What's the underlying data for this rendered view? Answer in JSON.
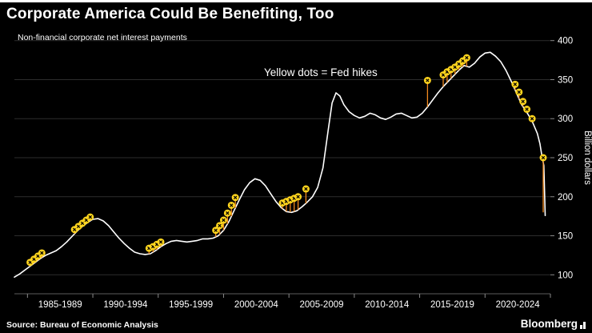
{
  "header": {
    "title": "Corporate America Could Be Benefiting, Too"
  },
  "chart": {
    "subtitle": "Non-financial corporate net interest payments",
    "annotation": "Yellow dots = Fed hikes",
    "y_axis_label": "Billion dollars"
  },
  "footer": {
    "source": "Source: Bureau of Economic Analysis",
    "brand": "Bloomberg"
  },
  "chart_data": {
    "type": "line",
    "title": "Corporate America Could Be Benefiting, Too",
    "subtitle": "Non-financial corporate net interest payments",
    "annotation": "Yellow dots = Fed hikes",
    "xlabel": "",
    "ylabel": "Billion dollars",
    "x_unit": "year",
    "x_range_years": [
      1984,
      2025
    ],
    "ylim": [
      88,
      412
    ],
    "yticks": [
      100,
      150,
      200,
      250,
      300,
      350,
      400
    ],
    "x_tick_labels": [
      "1985-1989",
      "1990-1994",
      "1995-1999",
      "2000-2004",
      "2005-2009",
      "2010-2014",
      "2015-2019",
      "2020-2024"
    ],
    "grid": "horizontal",
    "legend": "none",
    "series": [
      {
        "name": "Non-financial corporate net interest payments",
        "color": "#ffffff",
        "points": [
          [
            1984.0,
            97
          ],
          [
            1984.4,
            101
          ],
          [
            1984.8,
            106
          ],
          [
            1985.2,
            111
          ],
          [
            1985.6,
            116
          ],
          [
            1986.0,
            121
          ],
          [
            1986.4,
            125
          ],
          [
            1986.8,
            128
          ],
          [
            1987.2,
            131
          ],
          [
            1987.6,
            136
          ],
          [
            1988.0,
            142
          ],
          [
            1988.4,
            149
          ],
          [
            1988.8,
            156
          ],
          [
            1989.2,
            162
          ],
          [
            1989.6,
            167
          ],
          [
            1990.0,
            171
          ],
          [
            1990.4,
            172
          ],
          [
            1990.8,
            169
          ],
          [
            1991.2,
            163
          ],
          [
            1991.6,
            155
          ],
          [
            1992.0,
            147
          ],
          [
            1992.4,
            140
          ],
          [
            1992.8,
            134
          ],
          [
            1993.2,
            129
          ],
          [
            1993.6,
            127
          ],
          [
            1994.0,
            126
          ],
          [
            1994.4,
            127
          ],
          [
            1994.8,
            131
          ],
          [
            1995.2,
            136
          ],
          [
            1995.6,
            140
          ],
          [
            1996.0,
            143
          ],
          [
            1996.4,
            144
          ],
          [
            1996.8,
            143
          ],
          [
            1997.2,
            142
          ],
          [
            1997.6,
            143
          ],
          [
            1998.0,
            144
          ],
          [
            1998.4,
            146
          ],
          [
            1998.8,
            146
          ],
          [
            1999.2,
            147
          ],
          [
            1999.6,
            150
          ],
          [
            2000.0,
            157
          ],
          [
            2000.4,
            168
          ],
          [
            2000.8,
            182
          ],
          [
            2001.2,
            196
          ],
          [
            2001.6,
            209
          ],
          [
            2002.0,
            218
          ],
          [
            2002.4,
            223
          ],
          [
            2002.8,
            221
          ],
          [
            2003.2,
            214
          ],
          [
            2003.6,
            204
          ],
          [
            2004.0,
            194
          ],
          [
            2004.4,
            186
          ],
          [
            2004.8,
            181
          ],
          [
            2005.2,
            180
          ],
          [
            2005.6,
            182
          ],
          [
            2006.0,
            187
          ],
          [
            2006.4,
            193
          ],
          [
            2006.8,
            200
          ],
          [
            2007.2,
            212
          ],
          [
            2007.6,
            237
          ],
          [
            2008.0,
            285
          ],
          [
            2008.3,
            320
          ],
          [
            2008.6,
            333
          ],
          [
            2008.9,
            329
          ],
          [
            2009.2,
            318
          ],
          [
            2009.6,
            309
          ],
          [
            2010.0,
            304
          ],
          [
            2010.4,
            301
          ],
          [
            2010.8,
            303
          ],
          [
            2011.2,
            307
          ],
          [
            2011.6,
            305
          ],
          [
            2012.0,
            301
          ],
          [
            2012.4,
            299
          ],
          [
            2012.8,
            302
          ],
          [
            2013.2,
            306
          ],
          [
            2013.6,
            307
          ],
          [
            2014.0,
            304
          ],
          [
            2014.4,
            301
          ],
          [
            2014.8,
            302
          ],
          [
            2015.2,
            307
          ],
          [
            2015.6,
            315
          ],
          [
            2016.0,
            324
          ],
          [
            2016.4,
            333
          ],
          [
            2016.8,
            341
          ],
          [
            2017.2,
            348
          ],
          [
            2017.6,
            355
          ],
          [
            2018.0,
            362
          ],
          [
            2018.4,
            368
          ],
          [
            2018.8,
            366
          ],
          [
            2019.2,
            371
          ],
          [
            2019.6,
            379
          ],
          [
            2020.0,
            384
          ],
          [
            2020.4,
            385
          ],
          [
            2020.8,
            380
          ],
          [
            2021.2,
            373
          ],
          [
            2021.6,
            362
          ],
          [
            2022.0,
            348
          ],
          [
            2022.4,
            333
          ],
          [
            2022.8,
            318
          ],
          [
            2023.2,
            308
          ],
          [
            2023.6,
            297
          ],
          [
            2024.0,
            281
          ],
          [
            2024.2,
            268
          ],
          [
            2024.35,
            252
          ],
          [
            2024.5,
            240
          ],
          [
            2024.6,
            176
          ]
        ]
      }
    ],
    "fed_hike_dots": {
      "name": "Fed hikes",
      "color": "#ffd51e",
      "points": [
        [
          1985.2,
          116
        ],
        [
          1985.5,
          120
        ],
        [
          1985.8,
          124
        ],
        [
          1986.1,
          128
        ],
        [
          1988.6,
          158
        ],
        [
          1988.9,
          162
        ],
        [
          1989.2,
          166
        ],
        [
          1989.5,
          170
        ],
        [
          1989.8,
          174
        ],
        [
          1994.3,
          134
        ],
        [
          1994.6,
          136
        ],
        [
          1994.9,
          139
        ],
        [
          1995.2,
          142
        ],
        [
          1999.4,
          157
        ],
        [
          1999.7,
          163
        ],
        [
          2000.0,
          170
        ],
        [
          2000.3,
          179
        ],
        [
          2000.6,
          189
        ],
        [
          2000.9,
          199
        ],
        [
          2004.5,
          192
        ],
        [
          2004.8,
          194
        ],
        [
          2005.1,
          196
        ],
        [
          2005.4,
          198
        ],
        [
          2005.7,
          200
        ],
        [
          2006.3,
          210
        ],
        [
          2015.6,
          349
        ],
        [
          2016.8,
          356
        ],
        [
          2017.1,
          360
        ],
        [
          2017.4,
          363
        ],
        [
          2017.7,
          366
        ],
        [
          2018.0,
          370
        ],
        [
          2018.3,
          374
        ],
        [
          2018.6,
          378
        ],
        [
          2022.3,
          344
        ],
        [
          2022.6,
          334
        ],
        [
          2022.9,
          322
        ],
        [
          2023.2,
          312
        ],
        [
          2023.6,
          300
        ],
        [
          2024.45,
          250,
          180
        ]
      ]
    },
    "colors": {
      "background": "#000000",
      "line": "#ffffff",
      "dot": "#ffd51e",
      "dot_glyph": "#000000",
      "stem": "#f28a1e",
      "grid": "#2d2d2d",
      "axis": "#5c5c5c",
      "tick": "#8a8a8a",
      "text": "#ffffff"
    }
  }
}
